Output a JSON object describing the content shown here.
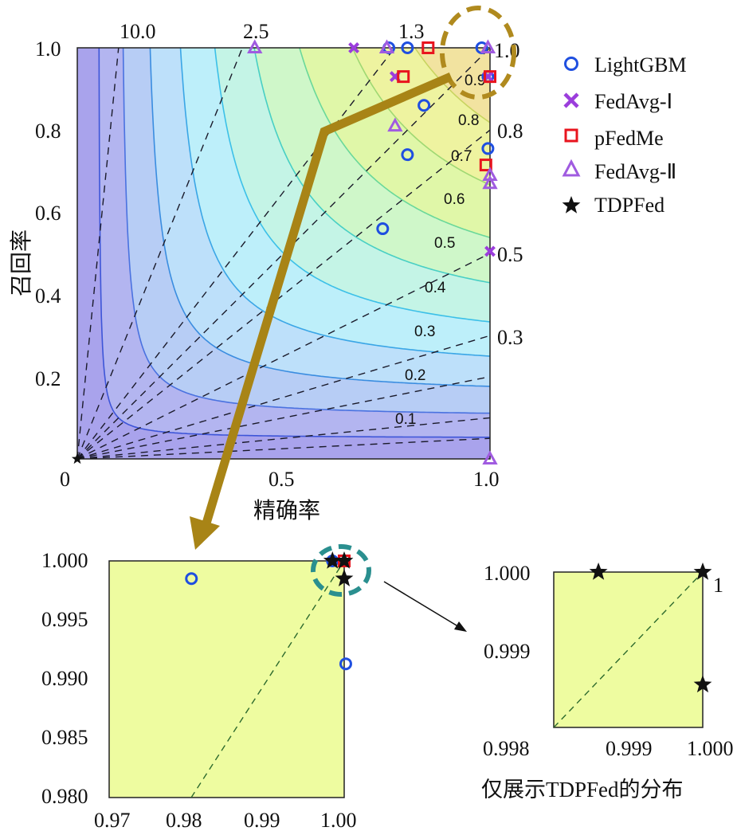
{
  "colors": {
    "lightgbm": "#1f4fe0",
    "fedavg1": "#9b3ddc",
    "pfedme": "#e8141e",
    "fedavg2": "#a05be0",
    "tdpfed": "#111111",
    "zoom_bg": "#eefca0",
    "arrow": "#a88416",
    "circle_gold": "#b08a1e",
    "circle_teal": "#2a8f8f"
  },
  "chart_data": [
    {
      "id": "main",
      "type": "scatter",
      "description_type": "F1 contour plot",
      "xlabel": "精确率",
      "ylabel": "召回率",
      "xlim": [
        0,
        1
      ],
      "ylim": [
        0,
        1
      ],
      "x_ticks": [
        "0",
        "0.5",
        "1.0"
      ],
      "y_ticks": [
        "0.2",
        "0.4",
        "0.6",
        "0.8",
        "1.0"
      ],
      "contour_levels": [
        0.1,
        0.2,
        0.3,
        0.4,
        0.5,
        0.6,
        0.7,
        0.8,
        0.9
      ],
      "contour_labels": [
        "0.1",
        "0.2",
        "0.3",
        "0.4",
        "0.5",
        "0.6",
        "0.7",
        "0.8",
        "0.9"
      ],
      "ratio_lines": [
        10.0,
        2.5,
        1.3,
        1.0,
        0.8,
        0.5,
        0.3,
        0.2,
        0.1,
        0.05
      ],
      "top_labels": [
        "10.0",
        "2.5",
        "1.3",
        "1.0"
      ],
      "right_labels": [
        "0.8",
        "0.5",
        "0.3"
      ],
      "series": [
        {
          "name": "LightGBM",
          "marker": "circle",
          "x": [
            0.755,
            0.8,
            0.98,
            0.995,
            0.84,
            0.8,
            0.995,
            0.74
          ],
          "y": [
            1.0,
            1.0,
            1.0,
            0.93,
            0.86,
            0.74,
            0.755,
            0.56
          ]
        },
        {
          "name": "FedAvg-Ⅰ",
          "marker": "x",
          "x": [
            0.67,
            0.77,
            0.995,
            1.0
          ],
          "y": [
            1.0,
            0.93,
            0.93,
            0.505
          ]
        },
        {
          "name": "pFedMe",
          "marker": "square",
          "x": [
            0.85,
            0.79,
            1.0,
            0.99
          ],
          "y": [
            1.0,
            0.93,
            0.93,
            0.715
          ]
        },
        {
          "name": "FedAvg-Ⅱ",
          "marker": "triangle",
          "x": [
            0.43,
            0.75,
            0.995,
            0.77,
            1.0,
            1.0,
            1.0
          ],
          "y": [
            1.0,
            1.0,
            1.0,
            0.81,
            0.69,
            0.67,
            0.0
          ]
        },
        {
          "name": "TDPFed",
          "marker": "star",
          "x": [
            0.0
          ],
          "y": [
            0.0
          ]
        }
      ]
    },
    {
      "id": "zoom1",
      "type": "scatter",
      "xlim": [
        0.97,
        1.0
      ],
      "ylim": [
        0.98,
        1.0
      ],
      "x_ticks": [
        "0.97",
        "0.98",
        "0.99",
        "1.00"
      ],
      "y_ticks": [
        "0.980",
        "0.985",
        "0.990",
        "0.995",
        "1.000"
      ],
      "series": [
        {
          "name": "LightGBM",
          "marker": "circle",
          "x": [
            0.9805,
            0.9985,
            1.0002
          ],
          "y": [
            0.9985,
            1.0,
            0.9913
          ]
        },
        {
          "name": "pFedMe",
          "marker": "square",
          "x": [
            1.0
          ],
          "y": [
            1.0
          ]
        },
        {
          "name": "TDPFed",
          "marker": "star",
          "x": [
            0.9985,
            1.0,
            1.0
          ],
          "y": [
            1.0,
            1.0,
            0.9985
          ]
        }
      ]
    },
    {
      "id": "zoom2",
      "type": "scatter",
      "xlim": [
        0.998,
        1.0
      ],
      "ylim": [
        0.998,
        1.0
      ],
      "x_ticks": [
        "0.998",
        "0.999",
        "1.000"
      ],
      "y_ticks": [
        "0.999",
        "1.000"
      ],
      "corner_label": "1",
      "caption": "仅展示TDPFed的分布",
      "series": [
        {
          "name": "TDPFed",
          "marker": "star",
          "x": [
            0.9986,
            1.0,
            1.0
          ],
          "y": [
            1.0,
            1.0,
            0.99855
          ]
        }
      ]
    }
  ],
  "legend": [
    {
      "label": "LightGBM",
      "marker": "circle",
      "color_key": "lightgbm"
    },
    {
      "label": "FedAvg-Ⅰ",
      "marker": "x",
      "color_key": "fedavg1"
    },
    {
      "label": "pFedMe",
      "marker": "square",
      "color_key": "pfedme"
    },
    {
      "label": "FedAvg-Ⅱ",
      "marker": "triangle",
      "color_key": "fedavg2"
    },
    {
      "label": "TDPFed",
      "marker": "star",
      "color_key": "tdpfed"
    }
  ]
}
